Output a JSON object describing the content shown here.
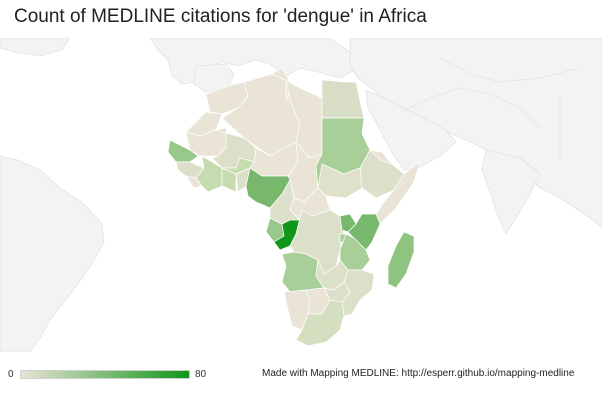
{
  "header": {
    "title": "Count of MEDLINE citations for 'dengue' in Africa"
  },
  "legend": {
    "min_label": "0",
    "max_label": "80",
    "min_value": 0,
    "max_value": 80,
    "color_low": "#e9e4d6",
    "color_high": "#109618"
  },
  "footer": {
    "credit": "Made with Mapping MEDLINE: http://esperr.github.io/mapping-medline"
  },
  "colors": {
    "no_data": "#f3f3f3",
    "border": "#ffffff"
  },
  "map_data": {
    "metric": "Count of MEDLINE citations",
    "query": "dengue",
    "region": "Africa"
  }
}
